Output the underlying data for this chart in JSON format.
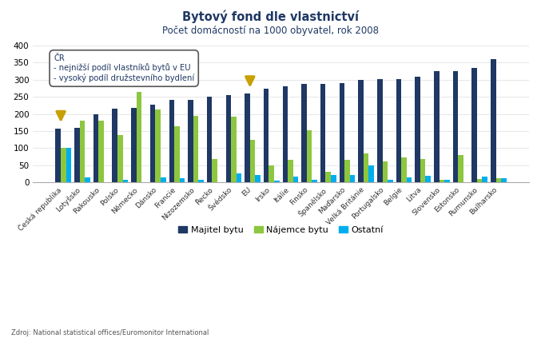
{
  "title": "Bytový fond dle vlastnictví",
  "subtitle": "Počet domácností na 1000 obyvatel, rok 2008",
  "categories": [
    "Česká republika",
    "Lotyšsko",
    "Rakousko",
    "Polsko",
    "Německo",
    "Dánsko",
    "Francie",
    "Nizozemsko",
    "Řecko",
    "Švédsko",
    "EU",
    "Irsko",
    "Itálie",
    "Finsko",
    "Španělsko",
    "Maďarsko",
    "Velká Británie",
    "Portugalsko",
    "Belgie",
    "Litva",
    "Slovensko",
    "Estonsko",
    "Rumunsko",
    "Bulharsko"
  ],
  "majitel": [
    157,
    160,
    198,
    215,
    218,
    227,
    240,
    242,
    251,
    255,
    260,
    274,
    281,
    287,
    288,
    290,
    300,
    301,
    301,
    310,
    325,
    325,
    335,
    360
  ],
  "najemce": [
    101,
    181,
    180,
    137,
    265,
    213,
    163,
    194,
    68,
    191,
    125,
    50,
    65,
    151,
    31,
    65,
    85,
    61,
    73,
    68,
    8,
    79,
    10,
    12
  ],
  "ostatni": [
    100,
    14,
    0,
    7,
    0,
    14,
    12,
    6,
    0,
    25,
    21,
    5,
    17,
    7,
    20,
    22,
    50,
    8,
    13,
    18,
    8,
    0,
    16,
    12
  ],
  "majitel_color": "#1F3864",
  "najemce_color": "#8DC63F",
  "ostatni_color": "#00AEEF",
  "ylim": [
    0,
    400
  ],
  "yticks": [
    0,
    50,
    100,
    150,
    200,
    250,
    300,
    350,
    400
  ],
  "source": "Zdroj: National statistical offices/Euromonitor International",
  "annotation_text": "ČR\n- nejnižší podíl vlastníků bytů v EU\n- vysoký podíl družstevního bydlení",
  "arrow_color": "#C8A000",
  "bg_color": "#FFFFFF",
  "title_color": "#1F3864",
  "legend_labels": [
    "Majitel bytu",
    "Nájemce bytu",
    "Ostatní"
  ]
}
